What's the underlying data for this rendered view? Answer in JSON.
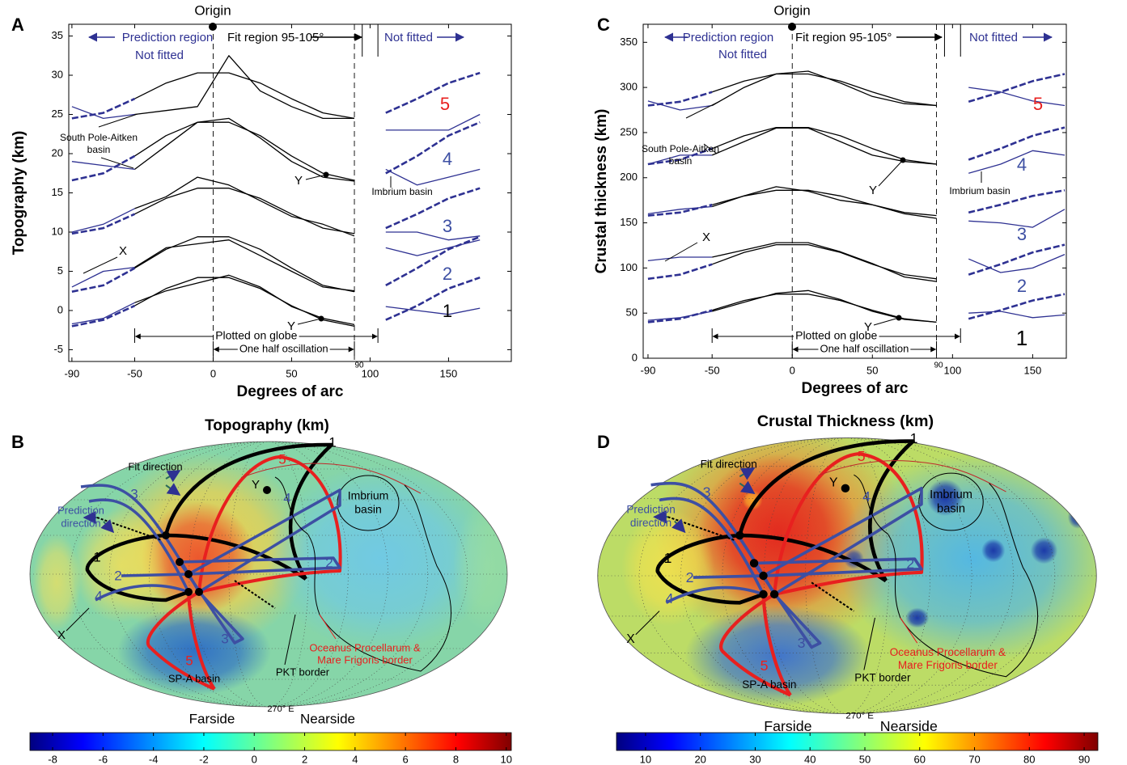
{
  "chart_data": [
    {
      "type": "line",
      "panel": "A",
      "xlabel": "Degrees of arc",
      "ylabel": "Topography (km)",
      "x": [
        -90,
        -70,
        -50,
        -30,
        -10,
        10,
        30,
        50,
        70,
        90,
        110,
        130,
        150,
        170
      ],
      "xlim": [
        -92,
        190
      ],
      "xticks": [
        -90,
        -50,
        0,
        50,
        100,
        150
      ],
      "ylim": [
        -6.5,
        36.5
      ],
      "yticks": [
        -5,
        0,
        5,
        10,
        15,
        20,
        25,
        30,
        35
      ],
      "reference_lines": [
        0,
        90
      ],
      "fit_region": [
        95,
        105
      ],
      "spans": [
        {
          "label": "Plotted on globe",
          "range": [
            -50,
            105
          ]
        },
        {
          "label": "One half oscillation",
          "range": [
            0,
            90
          ]
        }
      ],
      "annotations": [
        "Origin",
        "Prediction region",
        "Not fitted",
        "Fit region 95-105°",
        "Not fitted",
        "South Pole-Aitken",
        "basin",
        "X",
        "Y",
        "Y",
        "Imbrium basin",
        "90"
      ],
      "profile_labels": [
        {
          "text": "5",
          "color": "#e8201f"
        },
        {
          "text": "4",
          "color": "#3d4fa3"
        },
        {
          "text": "3",
          "color": "#3d4fa3"
        },
        {
          "text": "2",
          "color": "#3d4fa3"
        },
        {
          "text": "1",
          "color": "#000000"
        }
      ],
      "series": [
        {
          "color": "#2e3192",
          "style": "solid",
          "values": [
            -1.7,
            -1,
            1,
            null,
            null,
            null,
            null,
            null,
            null,
            null,
            0.5,
            0,
            -0.5,
            0.3
          ]
        },
        {
          "color": "#000000",
          "style": "solid",
          "values": [
            null,
            null,
            1,
            2.5,
            3.5,
            4.5,
            3,
            0.5,
            -1,
            -1.8,
            null,
            null,
            null,
            null
          ]
        },
        {
          "color": "#000000",
          "style": "solid",
          "values": [
            null,
            null,
            0.6,
            2.8,
            4.2,
            4.2,
            2.8,
            0.6,
            -1.2,
            -2,
            null,
            null,
            null,
            null
          ]
        },
        {
          "color": "#2e3192",
          "style": "dashed",
          "values": [
            -2,
            -1.2,
            0.6,
            null,
            null,
            null,
            null,
            null,
            null,
            null,
            -1.2,
            0.6,
            2.8,
            4.2
          ]
        },
        {
          "color": "#2e3192",
          "style": "solid",
          "values": [
            3,
            5,
            5.5,
            null,
            null,
            null,
            null,
            null,
            null,
            null,
            8,
            7,
            8,
            9
          ]
        },
        {
          "color": "#000000",
          "style": "solid",
          "values": [
            null,
            null,
            5.5,
            8,
            8.5,
            9,
            7,
            5,
            3,
            2.5,
            null,
            null,
            null,
            null
          ]
        },
        {
          "color": "#000000",
          "style": "solid",
          "values": [
            null,
            null,
            5.4,
            7.8,
            9.4,
            9.4,
            7.8,
            5.4,
            3.2,
            2.4,
            null,
            null,
            null,
            null
          ]
        },
        {
          "color": "#2e3192",
          "style": "dashed",
          "values": [
            2.4,
            3.2,
            5.4,
            null,
            null,
            null,
            null,
            null,
            null,
            null,
            3.2,
            5.4,
            7.8,
            9.4
          ]
        },
        {
          "color": "#2e3192",
          "style": "solid",
          "values": [
            10,
            11,
            13,
            null,
            null,
            null,
            null,
            null,
            null,
            null,
            10,
            10,
            9,
            9.5
          ]
        },
        {
          "color": "#000000",
          "style": "solid",
          "values": [
            null,
            null,
            13,
            14.5,
            17,
            16,
            14,
            12,
            11,
            9.5,
            null,
            null,
            null,
            null
          ]
        },
        {
          "color": "#000000",
          "style": "solid",
          "values": [
            null,
            null,
            12.3,
            14.3,
            15.6,
            15.6,
            14.3,
            12.3,
            10.5,
            9.8,
            null,
            null,
            null,
            null
          ]
        },
        {
          "color": "#2e3192",
          "style": "dashed",
          "values": [
            9.8,
            10.5,
            12.3,
            null,
            null,
            null,
            null,
            null,
            null,
            null,
            10.5,
            12.3,
            14.3,
            15.6
          ]
        },
        {
          "color": "#2e3192",
          "style": "solid",
          "values": [
            19,
            18.5,
            18,
            null,
            null,
            null,
            null,
            null,
            null,
            null,
            18,
            16,
            17,
            18
          ]
        },
        {
          "color": "#000000",
          "style": "solid",
          "values": [
            null,
            null,
            18,
            21,
            24,
            24.5,
            22,
            19,
            17,
            16.5,
            null,
            null,
            null,
            null
          ]
        },
        {
          "color": "#000000",
          "style": "solid",
          "values": [
            null,
            null,
            19.7,
            22.3,
            24,
            24,
            22.3,
            19.7,
            17.5,
            16.6,
            null,
            null,
            null,
            null
          ]
        },
        {
          "color": "#2e3192",
          "style": "dashed",
          "values": [
            16.6,
            17.5,
            19.7,
            null,
            null,
            null,
            null,
            null,
            null,
            null,
            17.5,
            19.7,
            22.3,
            24
          ]
        },
        {
          "color": "#2e3192",
          "style": "solid",
          "values": [
            26,
            24.5,
            25,
            null,
            null,
            null,
            null,
            null,
            null,
            null,
            23,
            23,
            23,
            25
          ]
        },
        {
          "color": "#000000",
          "style": "solid",
          "values": [
            null,
            null,
            25,
            25.5,
            26,
            32.5,
            28,
            26,
            24.5,
            24.5,
            null,
            null,
            null,
            null
          ]
        },
        {
          "color": "#000000",
          "style": "solid",
          "values": [
            null,
            null,
            27,
            29,
            30.3,
            30.3,
            29,
            27,
            25.2,
            24.5,
            null,
            null,
            null,
            null
          ]
        },
        {
          "color": "#2e3192",
          "style": "dashed",
          "values": [
            24.5,
            25.2,
            27,
            null,
            null,
            null,
            null,
            null,
            null,
            null,
            25.2,
            27,
            29,
            30.3
          ]
        }
      ]
    },
    {
      "type": "line",
      "panel": "C",
      "xlabel": "Degrees of arc",
      "ylabel": "Crustal thickness (km)",
      "x": [
        -90,
        -70,
        -50,
        -30,
        -10,
        10,
        30,
        50,
        70,
        90,
        110,
        130,
        150,
        170
      ],
      "xlim": [
        -93,
        171
      ],
      "xticks": [
        -90,
        -50,
        0,
        50,
        100,
        150
      ],
      "ylim": [
        0,
        370
      ],
      "yticks": [
        0,
        50,
        100,
        150,
        200,
        250,
        300,
        350
      ],
      "reference_lines": [
        0,
        90
      ],
      "fit_region": [
        95,
        105
      ],
      "spans": [
        {
          "label": "Plotted on globe",
          "range": [
            -50,
            105
          ]
        },
        {
          "label": "One half oscillation",
          "range": [
            0,
            90
          ]
        }
      ],
      "annotations": [
        "Origin",
        "Prediction region",
        "Not fitted",
        "Fit region 95-105°",
        "Not fitted",
        "South Pole-Aitken",
        "basin",
        "X",
        "Y",
        "Y",
        "Imbrium basin",
        "90"
      ],
      "profile_labels": [
        {
          "text": "5",
          "color": "#e8201f"
        },
        {
          "text": "4",
          "color": "#3d4fa3"
        },
        {
          "text": "3",
          "color": "#3d4fa3"
        },
        {
          "text": "2",
          "color": "#3d4fa3"
        },
        {
          "text": "1",
          "color": "#000000"
        }
      ],
      "series": [
        {
          "color": "#2e3192",
          "style": "solid",
          "values": [
            42,
            45,
            52,
            null,
            null,
            null,
            null,
            null,
            null,
            null,
            50,
            52,
            45,
            48
          ]
        },
        {
          "color": "#000000",
          "style": "solid",
          "values": [
            null,
            null,
            52,
            62,
            72,
            75,
            65,
            52,
            43,
            40,
            null,
            null,
            null,
            null
          ]
        },
        {
          "color": "#000000",
          "style": "solid",
          "values": [
            null,
            null,
            53.2,
            64,
            71,
            71,
            64,
            53.2,
            43.7,
            40,
            null,
            null,
            null,
            null
          ]
        },
        {
          "color": "#2e3192",
          "style": "dashed",
          "values": [
            40,
            43.7,
            53.2,
            null,
            null,
            null,
            null,
            null,
            null,
            null,
            43.7,
            53.2,
            64,
            71
          ]
        },
        {
          "color": "#2e3192",
          "style": "solid",
          "values": [
            108,
            112,
            112,
            null,
            null,
            null,
            null,
            null,
            null,
            null,
            110,
            95,
            100,
            115
          ]
        },
        {
          "color": "#000000",
          "style": "solid",
          "values": [
            null,
            null,
            112,
            120,
            128,
            128,
            118,
            105,
            90,
            85,
            null,
            null,
            null,
            null
          ]
        },
        {
          "color": "#000000",
          "style": "solid",
          "values": [
            null,
            null,
            104.1,
            117.3,
            125.8,
            125.8,
            117.3,
            104.1,
            92.6,
            88,
            null,
            null,
            null,
            null
          ]
        },
        {
          "color": "#2e3192",
          "style": "dashed",
          "values": [
            88,
            92.6,
            104.1,
            null,
            null,
            null,
            null,
            null,
            null,
            null,
            92.6,
            104.1,
            117.3,
            125.8
          ]
        },
        {
          "color": "#2e3192",
          "style": "solid",
          "values": [
            160,
            165,
            168,
            null,
            null,
            null,
            null,
            null,
            null,
            null,
            152,
            150,
            145,
            165
          ]
        },
        {
          "color": "#000000",
          "style": "solid",
          "values": [
            null,
            null,
            168,
            180,
            190,
            185,
            175,
            170,
            160,
            155,
            null,
            null,
            null,
            null
          ]
        },
        {
          "color": "#000000",
          "style": "solid",
          "values": [
            null,
            null,
            170,
            179.8,
            186.1,
            186.1,
            179.8,
            170,
            161.4,
            158,
            null,
            null,
            null,
            null
          ]
        },
        {
          "color": "#2e3192",
          "style": "dashed",
          "values": [
            158,
            161.4,
            170,
            null,
            null,
            null,
            null,
            null,
            null,
            null,
            161.4,
            170,
            179.8,
            186.1
          ]
        },
        {
          "color": "#2e3192",
          "style": "solid",
          "values": [
            215,
            225,
            225,
            null,
            null,
            null,
            null,
            null,
            null,
            null,
            205,
            215,
            230,
            225
          ]
        },
        {
          "color": "#000000",
          "style": "solid",
          "values": [
            null,
            null,
            225,
            240,
            255,
            255,
            240,
            225,
            218,
            215,
            null,
            null,
            null,
            null
          ]
        },
        {
          "color": "#000000",
          "style": "solid",
          "values": [
            null,
            null,
            232.3,
            246.5,
            255.7,
            255.7,
            246.5,
            232.3,
            219.9,
            215,
            null,
            null,
            null,
            null
          ]
        },
        {
          "color": "#2e3192",
          "style": "dashed",
          "values": [
            215,
            219.9,
            232.3,
            null,
            null,
            null,
            null,
            null,
            null,
            null,
            219.9,
            232.3,
            246.5,
            255.7
          ]
        },
        {
          "color": "#2e3192",
          "style": "solid",
          "values": [
            285,
            275,
            280,
            null,
            null,
            null,
            null,
            null,
            null,
            null,
            300,
            295,
            285,
            280
          ]
        },
        {
          "color": "#000000",
          "style": "solid",
          "values": [
            null,
            null,
            280,
            300,
            315,
            318,
            305,
            290,
            282,
            280,
            null,
            null,
            null,
            null
          ]
        },
        {
          "color": "#000000",
          "style": "solid",
          "values": [
            null,
            null,
            294.9,
            307,
            314.9,
            314.9,
            307,
            294.9,
            284.2,
            280,
            null,
            null,
            null,
            null
          ]
        },
        {
          "color": "#2e3192",
          "style": "dashed",
          "values": [
            280,
            284.2,
            294.9,
            null,
            null,
            null,
            null,
            null,
            null,
            null,
            284.2,
            294.9,
            307,
            314.9
          ]
        }
      ]
    },
    {
      "type": "map",
      "panel": "B",
      "title": "Topography (km)",
      "colormap": "jet",
      "clim": [
        -8.9,
        10.2
      ],
      "cticks": [
        -8,
        -6,
        -4,
        -2,
        0,
        2,
        4,
        6,
        8,
        10
      ],
      "labels": [
        "1",
        "5",
        "Fit direction",
        "3",
        "Y",
        "4",
        "Imbrium",
        "basin",
        "Prediction",
        "direction",
        "1",
        "2",
        "2",
        "X",
        "4",
        "3",
        "5",
        "SP-A basin",
        "PKT border",
        "Oceanus Procellarum &",
        "Mare Frigoris border"
      ],
      "footer": {
        "left": "Farside",
        "center": "270° E",
        "right": "Nearside"
      }
    },
    {
      "type": "map",
      "panel": "D",
      "title": "Crustal Thickness (km)",
      "colormap": "jet",
      "clim": [
        4.7,
        92.5
      ],
      "cticks": [
        10,
        20,
        30,
        40,
        50,
        60,
        70,
        80,
        90
      ],
      "labels": [
        "1",
        "5",
        "Fit direction",
        "3",
        "Y",
        "4",
        "Imbrium",
        "basin",
        "Prediction",
        "direction",
        "1",
        "2",
        "2",
        "X",
        "4",
        "3",
        "5",
        "SP-A basin",
        "PKT border",
        "Oceanus Procellarum &",
        "Mare Frigoris border"
      ],
      "footer": {
        "left": "Farside",
        "center": "270° E",
        "right": "Nearside"
      }
    }
  ]
}
